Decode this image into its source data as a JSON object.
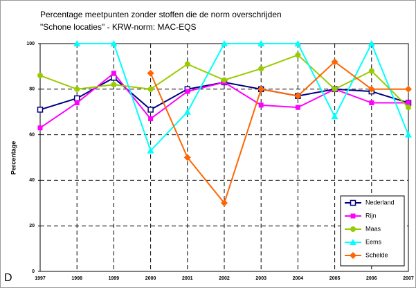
{
  "chart_data": {
    "type": "line",
    "title": "Percentage meetpunten zonder stoffen die de norm overschrijden",
    "subtitle": "\"Schone locaties\" - KRW-norm: MAC-EQS",
    "y_label": "Percentage",
    "annotation": "D",
    "categories": [
      "1997",
      "1998",
      "1999",
      "2000",
      "2001",
      "2002",
      "2003",
      "2004",
      "2005",
      "2006",
      "2007"
    ],
    "ylim": [
      0,
      100
    ],
    "yticks": [
      0,
      20,
      40,
      60,
      80,
      100
    ],
    "grid": true,
    "legend": "lower right",
    "series": [
      {
        "name": "Nederland",
        "color": "#000080",
        "marker": "square-open",
        "values": [
          71,
          76,
          85,
          71,
          80,
          83,
          80,
          77,
          80,
          79,
          74
        ]
      },
      {
        "name": "Rijn",
        "color": "#ff00ff",
        "marker": "square",
        "values": [
          63,
          74,
          87,
          67,
          79,
          83,
          73,
          72,
          80,
          74,
          74
        ]
      },
      {
        "name": "Maas",
        "color": "#99cc00",
        "marker": "circle",
        "values": [
          86,
          80,
          82,
          80,
          91,
          84,
          89,
          95,
          80,
          88,
          72
        ]
      },
      {
        "name": "Eems",
        "color": "#00ffff",
        "marker": "triangle",
        "values": [
          null,
          100,
          100,
          53,
          70,
          100,
          100,
          100,
          68,
          100,
          60
        ]
      },
      {
        "name": "Schelde",
        "color": "#ff6600",
        "marker": "diamond",
        "values": [
          null,
          null,
          null,
          87,
          50,
          30,
          80,
          77,
          92,
          80,
          80
        ]
      }
    ]
  }
}
